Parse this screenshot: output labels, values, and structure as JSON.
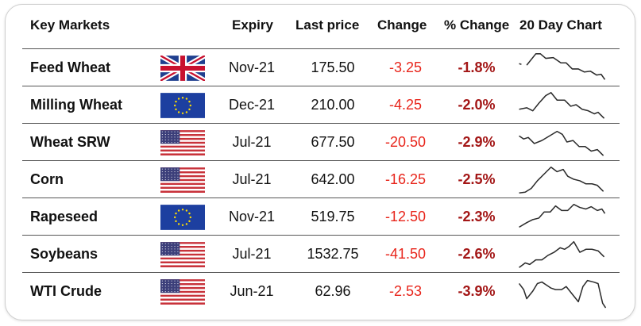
{
  "headers": {
    "market": "Key Markets",
    "expiry": "Expiry",
    "last_price": "Last price",
    "change": "Change",
    "pct_change": "% Change",
    "chart": "20 Day Chart"
  },
  "rows": [
    {
      "name": "Feed Wheat",
      "flag": "uk-flag",
      "expiry": "Nov-21",
      "last_price": "175.50",
      "change": "-3.25",
      "pct_change": "-1.8%",
      "spark": [
        [
          0,
          15
        ],
        [
          3,
          16
        ],
        [
          null,
          null
        ],
        [
          10,
          17
        ],
        [
          22,
          2
        ],
        [
          28,
          2
        ],
        [
          35,
          8
        ],
        [
          45,
          7
        ],
        [
          55,
          14
        ],
        [
          62,
          14
        ],
        [
          70,
          22
        ],
        [
          78,
          22
        ],
        [
          86,
          26
        ],
        [
          94,
          25
        ],
        [
          102,
          30
        ],
        [
          108,
          29
        ],
        [
          113,
          36
        ]
      ]
    },
    {
      "name": "Milling Wheat",
      "flag": "eu-flag",
      "expiry": "Dec-21",
      "last_price": "210.00",
      "change": "-4.25",
      "pct_change": "-2.0%",
      "spark": [
        [
          0,
          26
        ],
        [
          10,
          24
        ],
        [
          18,
          28
        ],
        [
          26,
          18
        ],
        [
          35,
          8
        ],
        [
          42,
          4
        ],
        [
          50,
          14
        ],
        [
          60,
          14
        ],
        [
          68,
          22
        ],
        [
          75,
          20
        ],
        [
          83,
          26
        ],
        [
          91,
          28
        ],
        [
          99,
          32
        ],
        [
          104,
          30
        ],
        [
          112,
          38
        ]
      ]
    },
    {
      "name": "Wheat SRW",
      "flag": "us-flag",
      "expiry": "Jul-21",
      "last_price": "677.50",
      "change": "-20.50",
      "pct_change": "-2.9%",
      "spark": [
        [
          0,
          12
        ],
        [
          6,
          16
        ],
        [
          12,
          14
        ],
        [
          20,
          22
        ],
        [
          30,
          18
        ],
        [
          40,
          12
        ],
        [
          50,
          6
        ],
        [
          57,
          10
        ],
        [
          63,
          20
        ],
        [
          71,
          18
        ],
        [
          79,
          26
        ],
        [
          87,
          26
        ],
        [
          95,
          32
        ],
        [
          103,
          30
        ],
        [
          111,
          38
        ]
      ]
    },
    {
      "name": "Corn",
      "flag": "us-flag",
      "expiry": "Jul-21",
      "last_price": "642.00",
      "change": "-16.25",
      "pct_change": "-2.5%",
      "spark": [
        [
          0,
          38
        ],
        [
          8,
          37
        ],
        [
          16,
          32
        ],
        [
          24,
          22
        ],
        [
          34,
          12
        ],
        [
          42,
          4
        ],
        [
          50,
          10
        ],
        [
          58,
          7
        ],
        [
          64,
          16
        ],
        [
          72,
          20
        ],
        [
          80,
          22
        ],
        [
          88,
          26
        ],
        [
          96,
          26
        ],
        [
          103,
          28
        ],
        [
          111,
          36
        ]
      ]
    },
    {
      "name": "Rapeseed",
      "flag": "eu-flag",
      "expiry": "Nov-21",
      "last_price": "519.75",
      "change": "-12.50",
      "pct_change": "-2.3%",
      "spark": [
        [
          0,
          34
        ],
        [
          10,
          28
        ],
        [
          18,
          24
        ],
        [
          26,
          22
        ],
        [
          33,
          14
        ],
        [
          41,
          14
        ],
        [
          48,
          6
        ],
        [
          56,
          12
        ],
        [
          64,
          12
        ],
        [
          72,
          4
        ],
        [
          80,
          8
        ],
        [
          88,
          10
        ],
        [
          95,
          7
        ],
        [
          103,
          12
        ],
        [
          109,
          10
        ],
        [
          113,
          16
        ]
      ]
    },
    {
      "name": "Soybeans",
      "flag": "us-flag",
      "expiry": "Jul-21",
      "last_price": "1532.75",
      "change": "-41.50",
      "pct_change": "-2.6%",
      "spark": [
        [
          0,
          38
        ],
        [
          8,
          32
        ],
        [
          14,
          34
        ],
        [
          22,
          28
        ],
        [
          30,
          28
        ],
        [
          38,
          22
        ],
        [
          46,
          18
        ],
        [
          54,
          12
        ],
        [
          60,
          14
        ],
        [
          66,
          10
        ],
        [
          72,
          4
        ],
        [
          80,
          18
        ],
        [
          88,
          14
        ],
        [
          96,
          14
        ],
        [
          104,
          16
        ],
        [
          112,
          24
        ]
      ]
    },
    {
      "name": "WTI Crude",
      "flag": "us-flag",
      "expiry": "Jun-21",
      "last_price": "62.96",
      "change": "-2.53",
      "pct_change": "-3.9%",
      "spark": [
        [
          0,
          10
        ],
        [
          6,
          18
        ],
        [
          10,
          30
        ],
        [
          18,
          20
        ],
        [
          24,
          10
        ],
        [
          30,
          8
        ],
        [
          36,
          12
        ],
        [
          42,
          16
        ],
        [
          48,
          18
        ],
        [
          56,
          18
        ],
        [
          62,
          14
        ],
        [
          70,
          24
        ],
        [
          78,
          34
        ],
        [
          84,
          14
        ],
        [
          90,
          6
        ],
        [
          98,
          8
        ],
        [
          104,
          10
        ],
        [
          110,
          36
        ],
        [
          114,
          42
        ]
      ]
    }
  ]
}
